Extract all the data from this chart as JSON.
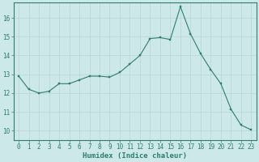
{
  "x": [
    0,
    1,
    2,
    3,
    4,
    5,
    6,
    7,
    8,
    9,
    10,
    11,
    12,
    13,
    14,
    15,
    16,
    17,
    18,
    19,
    20,
    21,
    22,
    23
  ],
  "y": [
    12.9,
    12.2,
    12.0,
    12.1,
    12.5,
    12.5,
    12.7,
    12.9,
    12.9,
    12.85,
    13.1,
    13.55,
    14.0,
    14.9,
    14.95,
    14.85,
    16.6,
    15.15,
    14.1,
    13.25,
    12.5,
    11.15,
    10.3,
    10.05
  ],
  "xlabel": "Humidex (Indice chaleur)",
  "ylabel": "",
  "xlim": [
    -0.5,
    23.5
  ],
  "ylim": [
    9.5,
    16.8
  ],
  "yticks": [
    10,
    11,
    12,
    13,
    14,
    15,
    16
  ],
  "xticks": [
    0,
    1,
    2,
    3,
    4,
    5,
    6,
    7,
    8,
    9,
    10,
    11,
    12,
    13,
    14,
    15,
    16,
    17,
    18,
    19,
    20,
    21,
    22,
    23
  ],
  "line_color": "#2e7d6e",
  "marker_color": "#2e7d6e",
  "bg_color": "#cde8e8",
  "grid_color": "#b8d4d4",
  "title_color": "#2e7d6e",
  "tick_color": "#2e7d6e",
  "label_color": "#2e7d6e",
  "spine_color": "#2e7d6e",
  "tick_fontsize": 5.5,
  "label_fontsize": 6.5
}
